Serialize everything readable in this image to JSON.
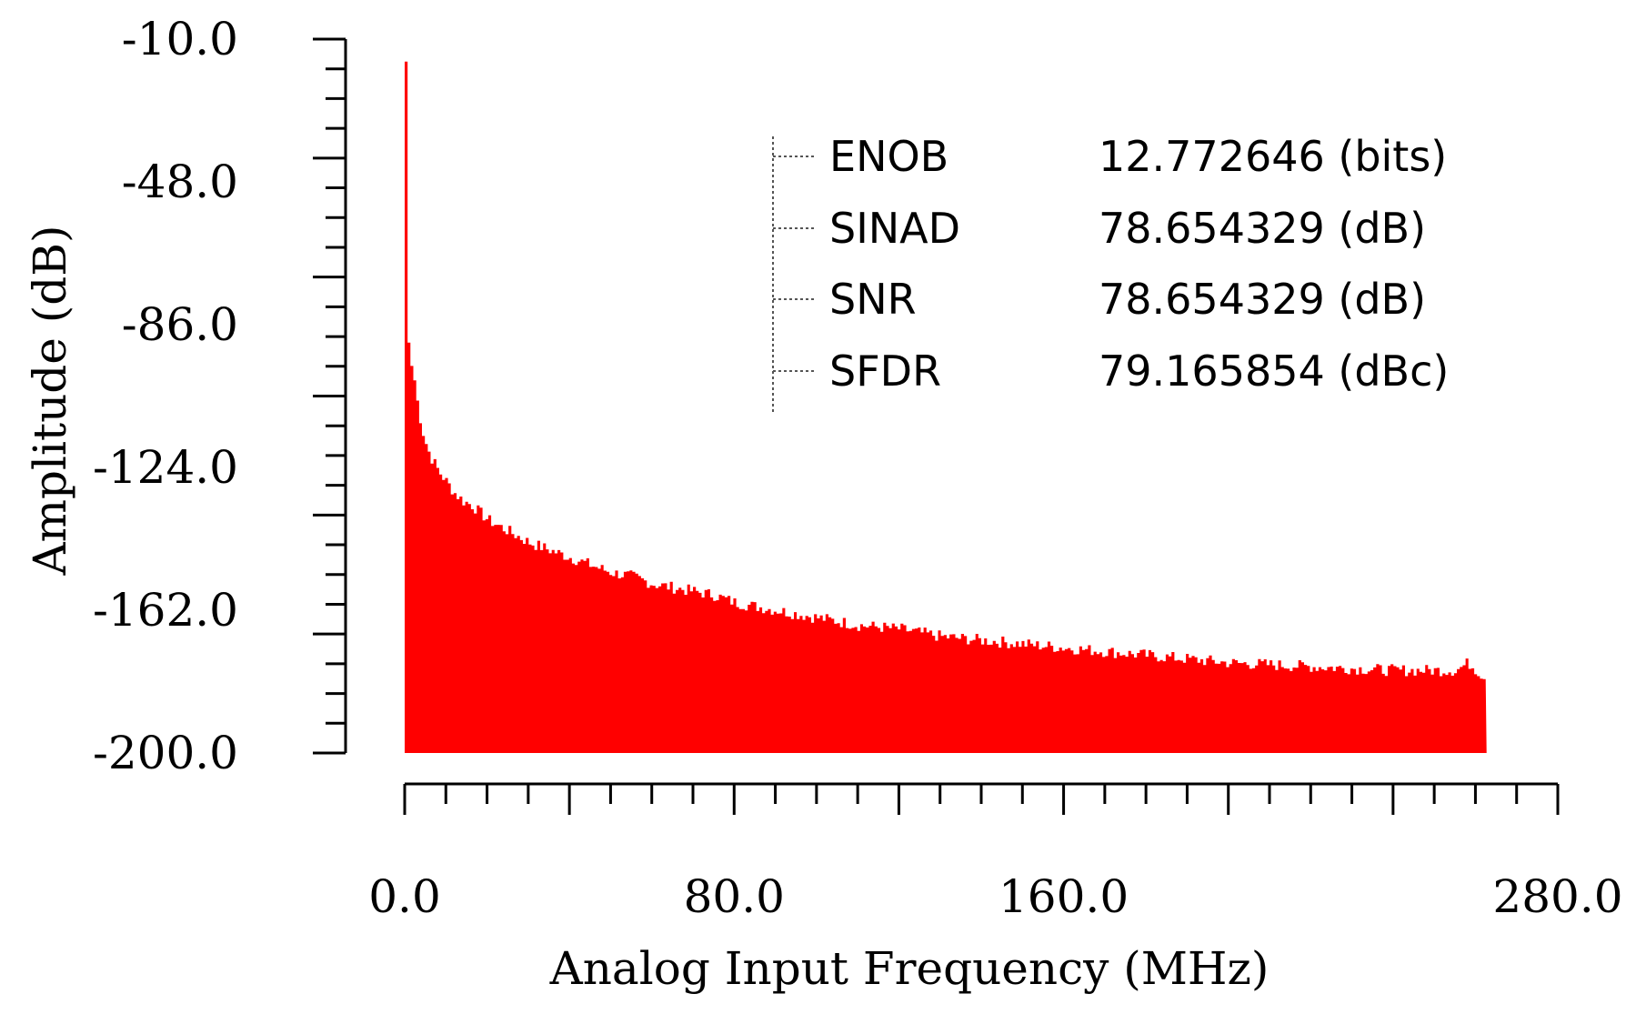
{
  "chart_data": {
    "type": "area",
    "xlabel": "Analog Input Frequency (MHz)",
    "ylabel": "Amplitude (dB)",
    "xlim": [
      0,
      280
    ],
    "ylim": [
      -200,
      -10
    ],
    "x_tick_labels": [
      "0.0",
      "80.0",
      "160.0",
      "280.0"
    ],
    "x_tick_values": [
      0,
      80,
      160,
      280
    ],
    "y_tick_labels": [
      "-10.0",
      "-48.0",
      "-86.0",
      "-124.0",
      "-162.0",
      "-200.0"
    ],
    "y_tick_values": [
      -10,
      -48,
      -86,
      -124,
      -162,
      -200
    ],
    "series": [
      {
        "color": "#ff0000",
        "x": [
          0,
          0.5,
          1,
          2,
          3,
          4,
          5,
          6,
          8,
          10,
          12,
          14,
          16,
          18,
          20,
          25,
          30,
          35,
          40,
          45,
          50,
          55,
          60,
          65,
          70,
          75,
          80,
          90,
          100,
          110,
          120,
          130,
          140,
          150,
          160,
          170,
          180,
          190,
          200,
          210,
          220,
          230,
          240,
          250,
          255,
          258,
          260,
          262
        ],
        "y": [
          -16,
          -88,
          -95,
          -100,
          -108,
          -114,
          -118,
          -121,
          -125,
          -128,
          -131,
          -133,
          -134,
          -136,
          -138,
          -141,
          -144,
          -146,
          -148,
          -150,
          -152,
          -153,
          -155,
          -156,
          -157,
          -158,
          -160,
          -162,
          -164,
          -166,
          -167,
          -169,
          -170,
          -171,
          -172,
          -173,
          -174,
          -175,
          -176,
          -176.5,
          -177,
          -177.5,
          -178,
          -178,
          -178,
          -176,
          -178,
          -180
        ]
      }
    ],
    "stats": [
      {
        "label": "ENOB",
        "value": "12.772646 (bits)"
      },
      {
        "label": "SINAD",
        "value": "78.654329 (dB)"
      },
      {
        "label": "SNR",
        "value": "78.654329 (dB)"
      },
      {
        "label": "SFDR",
        "value": "79.165854 (dBc)"
      }
    ]
  }
}
